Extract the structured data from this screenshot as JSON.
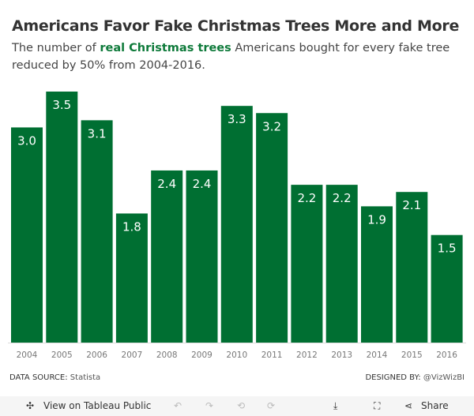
{
  "title": "Americans Favor Fake Christmas Trees More and More",
  "subtitle": {
    "pre": "The number of ",
    "highlight": "real Christmas trees",
    "post": " Americans bought for every fake tree reduced by 50% from 2004-2016."
  },
  "chart_data": {
    "type": "bar",
    "categories": [
      "2004",
      "2005",
      "2006",
      "2007",
      "2008",
      "2009",
      "2010",
      "2011",
      "2012",
      "2013",
      "2014",
      "2015",
      "2016"
    ],
    "values": [
      3.0,
      3.5,
      3.1,
      1.8,
      2.4,
      2.4,
      3.3,
      3.2,
      2.2,
      2.2,
      1.9,
      2.1,
      1.5
    ],
    "ylim": [
      0,
      3.5
    ],
    "grid": false,
    "bar_color": "#006f32",
    "highlight_color": "#0e7a3a"
  },
  "footer": {
    "source_label": "DATA SOURCE:",
    "source": "Statista",
    "designer_label": "DESIGNED BY:",
    "designer": "@VizWizBI"
  },
  "toolbar": {
    "view": "View on Tableau Public",
    "share": "Share",
    "undo": "↶",
    "redo": "↷",
    "revert": "⟲",
    "refresh": "⟳",
    "download": "⤓",
    "fullscreen": "⛶",
    "share_icon": "⋖"
  }
}
